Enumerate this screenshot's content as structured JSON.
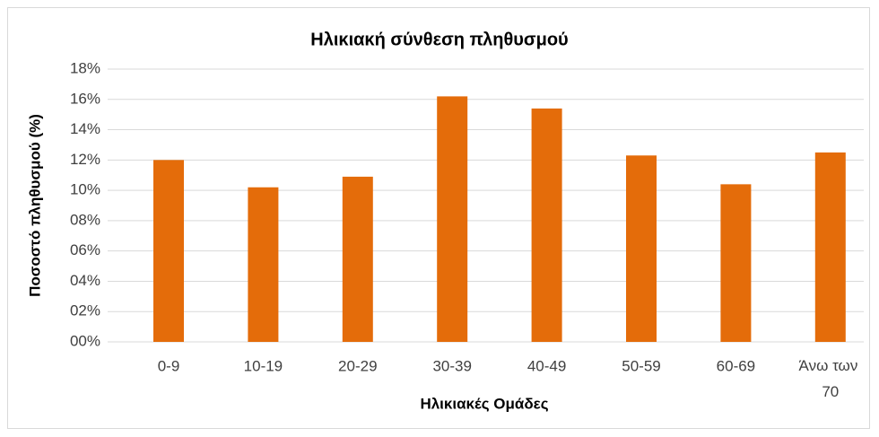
{
  "chart_data": {
    "type": "bar",
    "title": "Ηλικιακή σύνθεση πληθυσμού",
    "x_label": "Ηλικιακές Ομάδες",
    "y_label": "Ποσοστό πληθυσμού (%)",
    "categories": [
      "0-9",
      "10-19",
      "20-29",
      "30-39",
      "40-49",
      "50-59",
      "60-69",
      "Άνω των 70"
    ],
    "values": [
      12.0,
      10.2,
      10.9,
      16.2,
      15.4,
      12.3,
      10.4,
      12.5
    ],
    "color": "#e46c0a",
    "ylim": [
      0,
      18
    ],
    "yticks": [
      {
        "value": 0,
        "label": "00%"
      },
      {
        "value": 2,
        "label": "02%"
      },
      {
        "value": 4,
        "label": "04%"
      },
      {
        "value": 6,
        "label": "06%"
      },
      {
        "value": 8,
        "label": "08%"
      },
      {
        "value": 10,
        "label": "10%"
      },
      {
        "value": 12,
        "label": "12%"
      },
      {
        "value": 14,
        "label": "14%"
      },
      {
        "value": 16,
        "label": "16%"
      },
      {
        "value": 18,
        "label": "18%"
      }
    ],
    "grid": true
  }
}
